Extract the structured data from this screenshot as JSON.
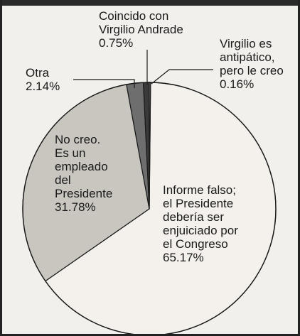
{
  "chart_data": {
    "type": "pie",
    "title": "",
    "slices": [
      {
        "label": [
          "Informe falso;",
          "el Presidente",
          "debería ser",
          "enjuiciado por",
          "el Congreso"
        ],
        "value": 65.17,
        "value_text": "65.17%",
        "color": "#f4f1ec"
      },
      {
        "label": [
          "No creo.",
          "Es un",
          "empleado",
          "del",
          "Presidente"
        ],
        "value": 31.78,
        "value_text": "31.78%",
        "color": "#c9c6c0"
      },
      {
        "label": [
          "Otra"
        ],
        "value": 2.14,
        "value_text": "2.14%",
        "color": "#6e6e6e"
      },
      {
        "label": [
          "Coincido con",
          "Virgilio Andrade"
        ],
        "value": 0.75,
        "value_text": "0.75%",
        "color": "#3a3a3a"
      },
      {
        "label": [
          "Virgilio es",
          "antipático,",
          "pero le creo"
        ],
        "value": 0.16,
        "value_text": "0.16%",
        "color": "#8a8a8a"
      }
    ]
  }
}
